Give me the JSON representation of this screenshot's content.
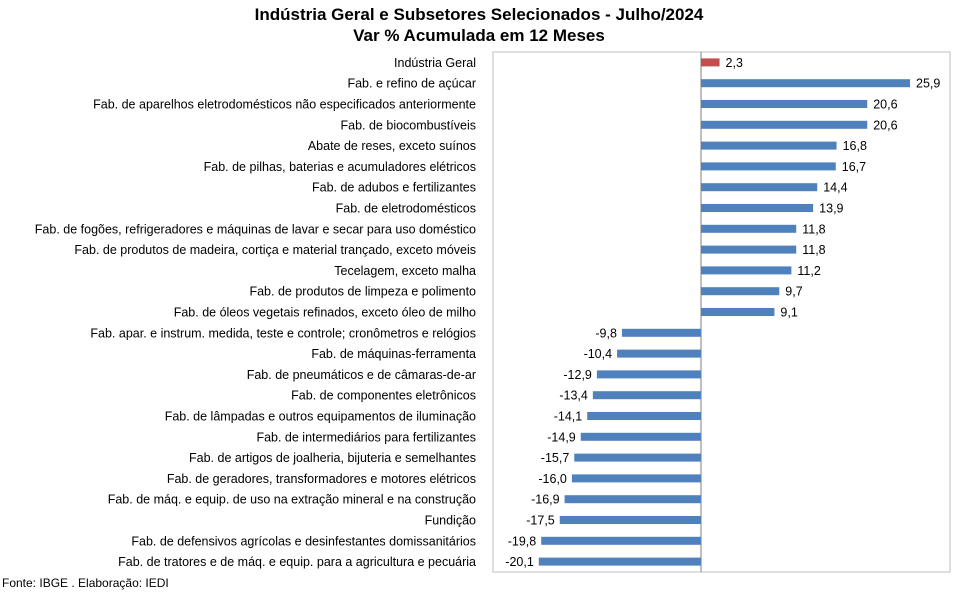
{
  "title_line1": "Indústria Geral e Subsetores Selecionados - Julho/2024",
  "title_line2": "Var % Acumulada em 12 Meses",
  "source": "Fonte: IBGE . Elaboração: IEDI",
  "colors": {
    "highlight": "#C0504D",
    "bar": "#4F81BD",
    "frame": "#BFBFBF"
  },
  "chart_data": {
    "type": "bar",
    "orientation": "horizontal",
    "grid": false,
    "categories": [
      "Indústria Geral",
      "Fab. e refino de açúcar",
      "Fab. de aparelhos eletrodomésticos não especificados anteriormente",
      "Fab. de biocombustíveis",
      "Abate de reses, exceto suínos",
      "Fab. de pilhas, baterias e acumuladores elétricos",
      "Fab. de adubos e fertilizantes",
      "Fab. de eletrodomésticos",
      "Fab. de fogões, refrigeradores e máquinas de lavar e secar para uso doméstico",
      "Fab. de produtos de madeira, cortiça e material trançado, exceto móveis",
      "Tecelagem, exceto malha",
      "Fab. de produtos de limpeza e polimento",
      "Fab. de óleos vegetais refinados, exceto óleo de milho",
      "Fab. apar. e instrum. medida, teste e controle; cronômetros e relógios",
      "Fab. de máquinas-ferramenta",
      "Fab. de pneumáticos e de câmaras-de-ar",
      "Fab. de componentes eletrônicos",
      "Fab. de lâmpadas e outros equipamentos de iluminação",
      "Fab. de intermediários para fertilizantes",
      "Fab. de artigos de joalheria, bijuteria e semelhantes",
      "Fab. de geradores, transformadores e motores elétricos",
      "Fab. de máq. e equip. de uso na extração mineral e na construção",
      "Fundição",
      "Fab. de defensivos agrícolas e desinfestantes domissanitários",
      "Fab. de tratores e de máq. e equip. para a agricultura e pecuária"
    ],
    "values": [
      2.3,
      25.9,
      20.6,
      20.6,
      16.8,
      16.7,
      14.4,
      13.9,
      11.8,
      11.8,
      11.2,
      9.7,
      9.1,
      -9.8,
      -10.4,
      -12.9,
      -13.4,
      -14.1,
      -14.9,
      -15.7,
      -16.0,
      -16.9,
      -17.5,
      -19.8,
      -20.1
    ],
    "labels": [
      "2,3",
      "25,9",
      "20,6",
      "20,6",
      "16,8",
      "16,7",
      "14,4",
      "13,9",
      "11,8",
      "11,8",
      "11,2",
      "9,7",
      "9,1",
      "-9,8",
      "-10,4",
      "-12,9",
      "-13,4",
      "-14,1",
      "-14,9",
      "-15,7",
      "-16,0",
      "-16,9",
      "-17,5",
      "-19,8",
      "-20,1"
    ],
    "highlight_index": 0
  }
}
